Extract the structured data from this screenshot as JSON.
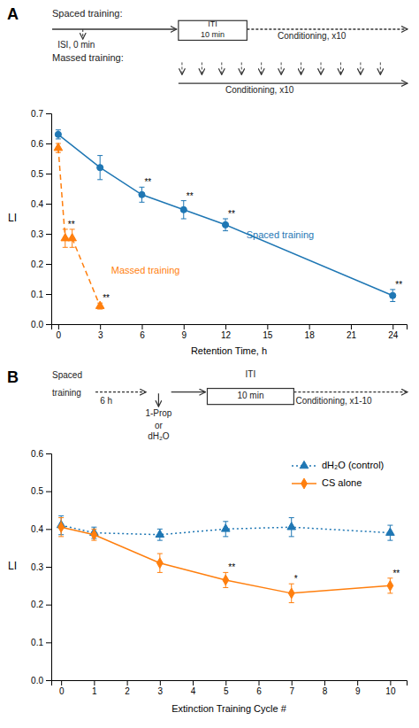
{
  "chart_data": [
    {
      "type": "line",
      "title": "A",
      "xlabel": "Retention Time, h",
      "ylabel": "LI",
      "xlim": [
        -0.5,
        25
      ],
      "ylim": [
        0,
        0.7
      ],
      "xticks": [
        0,
        3,
        6,
        9,
        12,
        15,
        18,
        21,
        24
      ],
      "yticks": [
        {
          "value": 0,
          "label": "0.0"
        },
        0.1,
        0.2,
        0.3,
        0.4,
        0.5,
        0.6,
        0.7
      ],
      "series": [
        {
          "name": "Spaced training",
          "x": [
            0,
            3,
            6,
            9,
            12,
            24
          ],
          "values": [
            0.63,
            0.52,
            0.43,
            0.38,
            0.33,
            0.095
          ],
          "errors": [
            0.015,
            0.04,
            0.025,
            0.03,
            0.02,
            0.02
          ],
          "marker": "circle",
          "line_style": "solid"
        },
        {
          "name": "Massed training",
          "x": [
            0,
            0.5,
            1,
            3
          ],
          "values": [
            0.585,
            0.285,
            0.285,
            0.06
          ],
          "errors": [
            0.015,
            0.03,
            0.03,
            0.01
          ],
          "marker": "triangle",
          "line_style": "dashed"
        }
      ],
      "annotations": [
        {
          "text": "Spaced training:"
        },
        {
          "text": "ISI, 0 min"
        },
        {
          "text": "ITI"
        },
        {
          "text": "10 min"
        },
        {
          "text": "Conditioning, x10"
        },
        {
          "text": "Massed training:"
        },
        {
          "text": "Conditioning, x10"
        },
        {
          "text": "**",
          "x": 6,
          "y": 0.43
        },
        {
          "text": "**",
          "x": 9,
          "y": 0.38
        },
        {
          "text": "**",
          "x": 12,
          "y": 0.33
        },
        {
          "text": "**",
          "x": 24,
          "y": 0.095
        },
        {
          "text": "**",
          "x": 0.5,
          "y": 0.285
        },
        {
          "text": "**",
          "x": 3,
          "y": 0.06
        },
        {
          "text": "Spaced training",
          "x": 13.5,
          "y": 0.295
        },
        {
          "text": "Massed training",
          "x": 3.8,
          "y": 0.175
        }
      ]
    },
    {
      "type": "line",
      "title": "B",
      "xlabel": "Extinction Training Cycle #",
      "ylabel": "LI",
      "xlim": [
        -0.3,
        10.5
      ],
      "ylim": [
        0,
        0.6
      ],
      "xticks": [
        0,
        1,
        2,
        3,
        4,
        5,
        6,
        7,
        8,
        9,
        10
      ],
      "yticks": [
        {
          "value": 0,
          "label": "0.0"
        },
        0.1,
        0.2,
        0.3,
        0.4,
        0.5,
        0.6
      ],
      "legend": "upper right",
      "series": [
        {
          "name": "dH₂O (control)",
          "x": [
            0,
            1,
            3,
            5,
            7,
            10
          ],
          "values": [
            0.41,
            0.39,
            0.385,
            0.4,
            0.405,
            0.39
          ],
          "errors": [
            0.025,
            0.015,
            0.015,
            0.02,
            0.025,
            0.02
          ],
          "marker": "triangle",
          "line_style": "dotted"
        },
        {
          "name": "CS alone",
          "x": [
            0,
            1,
            3,
            5,
            7,
            10
          ],
          "values": [
            0.405,
            0.385,
            0.31,
            0.265,
            0.23,
            0.25
          ],
          "errors": [
            0.025,
            0.015,
            0.025,
            0.02,
            0.025,
            0.02
          ],
          "marker": "diamond",
          "line_style": "solid"
        }
      ],
      "annotations": [
        {
          "text": "Spaced"
        },
        {
          "text": "training"
        },
        {
          "text": "6 h"
        },
        {
          "text": "1-Prop"
        },
        {
          "text": "or"
        },
        {
          "text": "dH₂O"
        },
        {
          "text": "ITI"
        },
        {
          "text": "10 min"
        },
        {
          "text": "Conditioning, x1-10"
        },
        {
          "text": "**",
          "x": 5,
          "y": 0.265
        },
        {
          "text": "*",
          "x": 7,
          "y": 0.23
        },
        {
          "text": "**",
          "x": 10,
          "y": 0.25
        }
      ]
    }
  ]
}
